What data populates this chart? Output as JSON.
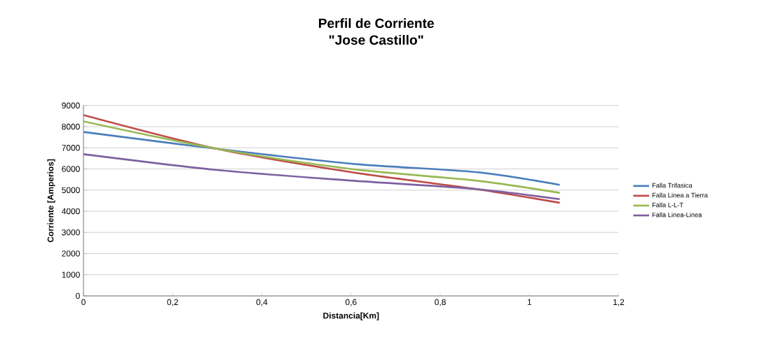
{
  "chart_data": {
    "type": "line",
    "title": "Perfil de Corriente",
    "subtitle": "\"Jose Castillo\"",
    "xlabel": "Distancia[Km]",
    "ylabel": "Corriente [Amperios]",
    "x": [
      0,
      0.3,
      0.6,
      0.88,
      1.068
    ],
    "series": [
      {
        "name": "Falla Trifasica",
        "color": "#4a7ebb",
        "values": [
          7750,
          6950,
          6250,
          5850,
          5250
        ]
      },
      {
        "name": "Falla Linea a Tierra",
        "color": "#be4b48",
        "values": [
          8550,
          6950,
          5850,
          5050,
          4400
        ]
      },
      {
        "name": "Falla L-L-T",
        "color": "#98b954",
        "values": [
          8250,
          6950,
          6000,
          5450,
          4870
        ]
      },
      {
        "name": "Falla Linea-Linea",
        "color": "#7d60a0",
        "values": [
          6700,
          5950,
          5450,
          5050,
          4570
        ]
      }
    ],
    "xlim": [
      0,
      1.2
    ],
    "xticks": [
      0,
      {
        "value": 0.2,
        "label": "0,2"
      },
      {
        "value": 0.4,
        "label": "0,4"
      },
      {
        "value": 0.6,
        "label": "0,6"
      },
      {
        "value": 0.8,
        "label": "0,8"
      },
      1,
      {
        "value": 1.2,
        "label": "1,2"
      }
    ],
    "ylim": [
      0,
      9000
    ],
    "yticks": [
      0,
      1000,
      2000,
      3000,
      4000,
      5000,
      6000,
      7000,
      8000,
      9000
    ],
    "grid": "y",
    "legend": "right",
    "marker": "none",
    "line_style": "solid"
  }
}
